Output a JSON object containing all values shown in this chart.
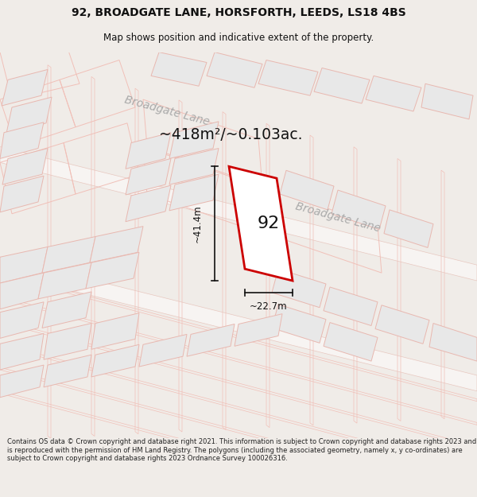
{
  "title_line1": "92, BROADGATE LANE, HORSFORTH, LEEDS, LS18 4BS",
  "title_line2": "Map shows position and indicative extent of the property.",
  "area_text": "~418m²/~0.103ac.",
  "dim_width": "~22.7m",
  "dim_height": "~41.4m",
  "label_92": "92",
  "road_label_tl": "Broadgate Lane",
  "road_label_br": "Broadgate Lane",
  "footer_text": "Contains OS data © Crown copyright and database right 2021. This information is subject to Crown copyright and database rights 2023 and is reproduced with the permission of HM Land Registry. The polygons (including the associated geometry, namely x, y co-ordinates) are subject to Crown copyright and database rights 2023 Ordnance Survey 100026316.",
  "map_bg": "#ffffff",
  "page_bg": "#f0ece8",
  "road_fill": "#f7f4f2",
  "road_edge": "#e8c8c0",
  "plot_fill": "#ffffff",
  "plot_edge": "#cc0000",
  "bldg_fill": "#e8e8e8",
  "bldg_edge": "#e8b8b0",
  "parcel_fill": "none",
  "parcel_edge": "#f0c0b8",
  "dim_color": "#111111",
  "text_dark": "#111111",
  "road_text": "#aaaaaa",
  "footer_color": "#222222"
}
